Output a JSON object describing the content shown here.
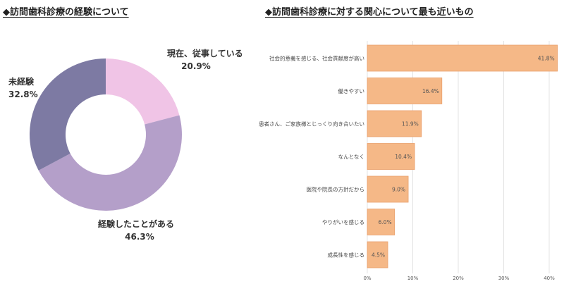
{
  "left_title": "◆訪問歯科診療の経験について",
  "right_title": "◆訪問歯科診療に対する関心について最も近いもの",
  "chart_data": [
    {
      "type": "pie",
      "donut": true,
      "slices": [
        {
          "name": "現在、従事している",
          "value": 20.9,
          "label": "20.9%",
          "color": "#f0c4e6"
        },
        {
          "name": "経験したことがある",
          "value": 46.3,
          "label": "46.3%",
          "color": "#b49fc9"
        },
        {
          "name": "未経験",
          "value": 32.8,
          "label": "32.8%",
          "color": "#7d7aa3"
        }
      ]
    },
    {
      "type": "bar",
      "orientation": "horizontal",
      "categories": [
        "社会的意義を感じる、社会貢献度が高い",
        "働きやすい",
        "患者さん、ご家族様とじっくり向き合いたい",
        "なんとなく",
        "医院や院長の方針だから",
        "やりがいを感じる",
        "成長性を感じる"
      ],
      "values": [
        41.8,
        16.4,
        11.9,
        10.4,
        9.0,
        6.0,
        4.5
      ],
      "value_labels": [
        "41.8%",
        "16.4%",
        "11.9%",
        "10.4%",
        "9.0%",
        "6.0%",
        "4.5%"
      ],
      "xlim": [
        0,
        40
      ],
      "xticks": [
        "0%",
        "10%",
        "20%",
        "30%",
        "40%"
      ],
      "grid": true,
      "bar_color": "#f5b887",
      "bar_edge_color": "#e9a06d"
    }
  ]
}
